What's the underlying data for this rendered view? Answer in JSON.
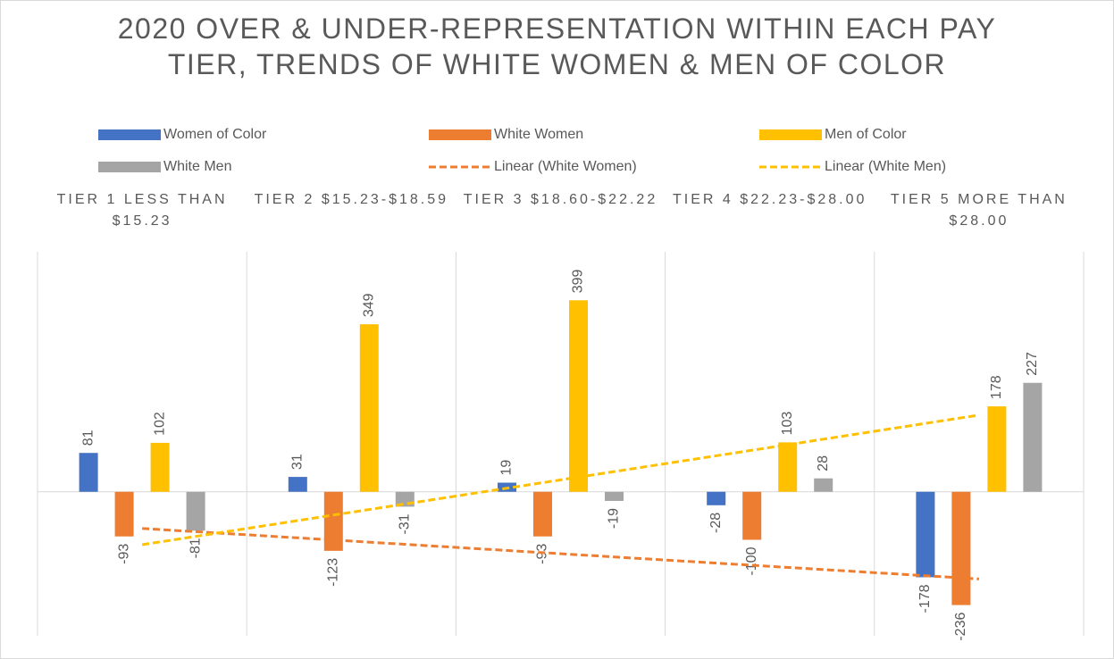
{
  "chart_data": {
    "type": "bar",
    "title": "2020 OVER & UNDER-REPRESENTATION WITHIN EACH PAY TIER, TRENDS OF WHITE WOMEN & MEN OF COLOR",
    "categories": [
      "TIER 1 LESS THAN $15.23",
      "TIER 2 $15.23-$18.59",
      "TIER 3 $18.60-$22.22",
      "TIER 4 $22.23-$28.00",
      "TIER 5 MORE THAN $28.00"
    ],
    "series": [
      {
        "name": "Women of Color",
        "color": "#4472c4",
        "values": [
          81,
          31,
          19,
          -28,
          -178
        ]
      },
      {
        "name": "White Women",
        "color": "#ed7d31",
        "values": [
          -93,
          -123,
          -93,
          -100,
          -236
        ]
      },
      {
        "name": "Men of Color",
        "color": "#ffc000",
        "values": [
          102,
          349,
          399,
          103,
          178
        ]
      },
      {
        "name": "White Men",
        "color": "#a5a5a5",
        "values": [
          -81,
          -31,
          -19,
          28,
          227
        ]
      }
    ],
    "trendlines": [
      {
        "name": "Linear (White Women)",
        "series": 1,
        "color": "#ed7d31"
      },
      {
        "name": "Linear (White Men)",
        "series": 3,
        "color": "#ffc000"
      }
    ],
    "ylim": [
      -300,
      500
    ]
  }
}
